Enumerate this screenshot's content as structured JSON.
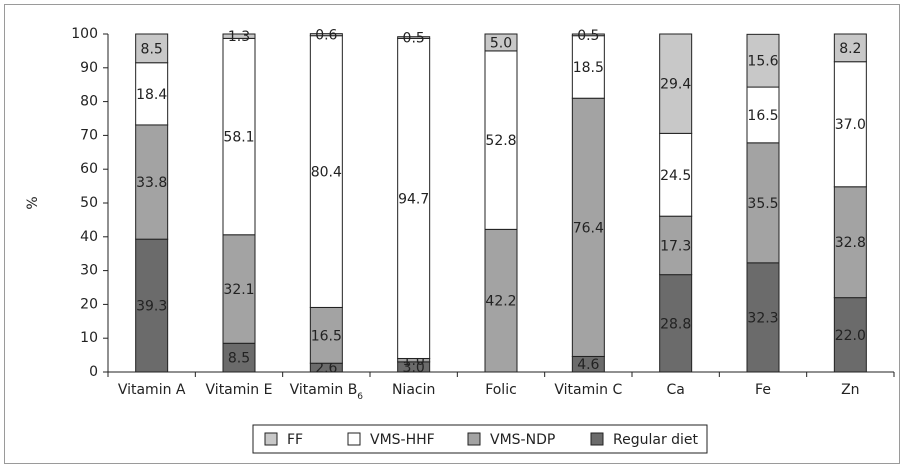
{
  "chart_data": {
    "type": "bar",
    "stacked": true,
    "title": "",
    "xlabel": "",
    "ylabel": "%",
    "ylim": [
      0,
      100
    ],
    "yticks": [
      0,
      10,
      20,
      30,
      40,
      50,
      60,
      70,
      80,
      90,
      100
    ],
    "grid": false,
    "legend_position": "bottom",
    "categories": [
      "Vitamin A",
      "Vitamin E",
      "Vitamin B6",
      "Niacin",
      "Folic",
      "Vitamin C",
      "Ca",
      "Fe",
      "Zn"
    ],
    "category_display": [
      {
        "base": "Vitamin A",
        "sub": ""
      },
      {
        "base": "Vitamin E",
        "sub": ""
      },
      {
        "base": "Vitamin B",
        "sub": "6"
      },
      {
        "base": "Niacin",
        "sub": ""
      },
      {
        "base": "Folic",
        "sub": ""
      },
      {
        "base": "Vitamin C",
        "sub": ""
      },
      {
        "base": "Ca",
        "sub": ""
      },
      {
        "base": "Fe",
        "sub": ""
      },
      {
        "base": "Zn",
        "sub": ""
      }
    ],
    "series": [
      {
        "name": "Regular diet",
        "color": "#6b6b6b",
        "values": [
          39.3,
          8.5,
          2.6,
          3.0,
          0,
          4.6,
          28.8,
          32.3,
          22.0
        ],
        "labels": [
          "39.3",
          "8.5",
          "2.6",
          "3.0",
          "",
          "4.6",
          "28.8",
          "32.3",
          "22.0"
        ]
      },
      {
        "name": "VMS-NDP",
        "color": "#a3a3a3",
        "values": [
          33.8,
          32.1,
          16.5,
          1.0,
          42.2,
          76.4,
          17.3,
          35.5,
          32.8
        ],
        "labels": [
          "33.8",
          "32.1",
          "16.5",
          "1.0",
          "42.2",
          "76.4",
          "17.3",
          "35.5",
          "32.8"
        ]
      },
      {
        "name": "VMS-HHF",
        "color": "#ffffff",
        "values": [
          18.4,
          58.1,
          80.4,
          94.7,
          52.8,
          18.5,
          24.5,
          16.5,
          37.0
        ],
        "labels": [
          "18.4",
          "58.1",
          "80.4",
          "94.7",
          "52.8",
          "18.5",
          "24.5",
          "16.5",
          "37.0"
        ]
      },
      {
        "name": "FF",
        "color": "#c8c8c8",
        "values": [
          8.5,
          1.3,
          0.6,
          0.5,
          5.0,
          0.5,
          29.4,
          15.6,
          8.2
        ],
        "labels": [
          "8.5",
          "1.3",
          "0.6",
          "0.5",
          "5.0",
          "0.5",
          "29.4",
          "15.6",
          "8.2"
        ]
      }
    ],
    "legend_order": [
      "FF",
      "VMS-HHF",
      "VMS-NDP",
      "Regular diet"
    ]
  }
}
